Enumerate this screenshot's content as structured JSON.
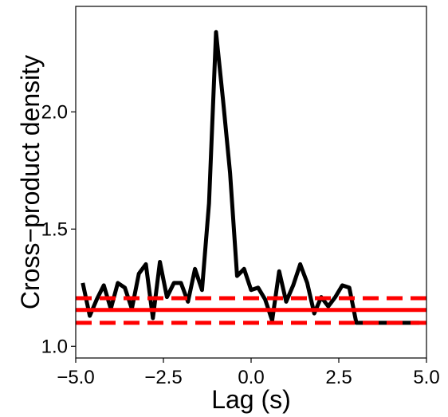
{
  "chart_data": {
    "type": "line",
    "title": "",
    "xlabel": "Lag (s)",
    "ylabel": "Cross−product density",
    "xlim": [
      -5.0,
      5.0
    ],
    "ylim": [
      0.95,
      2.45
    ],
    "x_ticks": [
      -5.0,
      -2.5,
      0.0,
      2.5,
      5.0
    ],
    "x_tick_labels": [
      "−5.0",
      "−2.5",
      "0.0",
      "2.5",
      "5.0"
    ],
    "y_ticks": [
      1.0,
      1.5,
      2.0
    ],
    "y_tick_labels": [
      "1.0",
      "1.5",
      "2.0"
    ],
    "grid": false,
    "series": [
      {
        "color": "#000000",
        "style": "solid",
        "x": [
          -4.8,
          -4.6,
          -4.4,
          -4.2,
          -4.0,
          -3.8,
          -3.6,
          -3.4,
          -3.2,
          -3.0,
          -2.8,
          -2.6,
          -2.4,
          -2.2,
          -2.0,
          -1.8,
          -1.6,
          -1.4,
          -1.2,
          -1.0,
          -0.8,
          -0.6,
          -0.4,
          -0.2,
          0.0,
          0.2,
          0.4,
          0.6,
          0.8,
          1.0,
          1.2,
          1.4,
          1.6,
          1.8,
          2.0,
          2.2,
          2.4,
          2.6,
          2.8,
          3.0,
          3.2,
          3.4,
          3.6,
          3.8,
          4.0,
          4.2,
          4.4,
          4.6,
          4.8
        ],
        "y": [
          1.27,
          1.13,
          1.2,
          1.26,
          1.16,
          1.27,
          1.25,
          1.16,
          1.31,
          1.35,
          1.12,
          1.36,
          1.21,
          1.27,
          1.27,
          1.19,
          1.33,
          1.24,
          1.61,
          2.34,
          2.05,
          1.74,
          1.3,
          1.33,
          1.24,
          1.25,
          1.2,
          1.11,
          1.32,
          1.19,
          1.26,
          1.35,
          1.27,
          1.14,
          1.21,
          1.17,
          1.21,
          1.26,
          1.25,
          1.1,
          1.1,
          1.1,
          1.1,
          1.1,
          1.1,
          1.1,
          1.1,
          1.1,
          1.1
        ]
      },
      {
        "color": "#ff0000",
        "style": "solid",
        "x": [
          -5.0,
          5.0
        ],
        "y": [
          1.155,
          1.155
        ]
      },
      {
        "color": "#ff0000",
        "style": "dashed",
        "x": [
          -5.0,
          5.0
        ],
        "y": [
          1.205,
          1.205
        ]
      },
      {
        "color": "#ff0000",
        "style": "dashed",
        "x": [
          -5.0,
          5.0
        ],
        "y": [
          1.1,
          1.1
        ]
      }
    ]
  }
}
